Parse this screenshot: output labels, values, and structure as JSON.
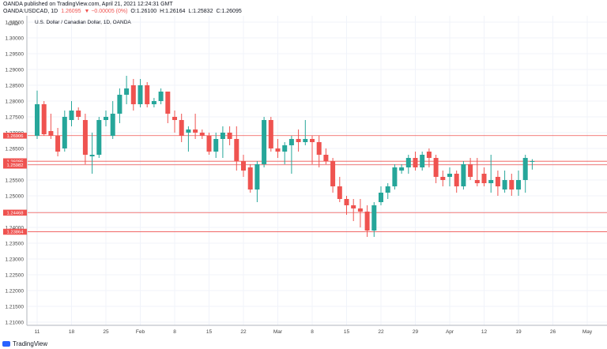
{
  "header": {
    "line1": "OANDA published on TradingView.com, April 21, 2021 12:24:31 GMT",
    "symbol": "OANDA:USDCAD, 1D",
    "last": "1.26095",
    "change": "▼ −0.00005 (0%)",
    "open": "O:1.26100",
    "high": "H:1.26164",
    "low": "L:1.25832",
    "close": "C:1.26095"
  },
  "footer": {
    "brand": "TradingView"
  },
  "colors": {
    "up": "#26a69a",
    "down": "#ef5350",
    "level_line": "#ef5350",
    "axis_text": "#444444",
    "grid": "#f0f3fa"
  },
  "chart_data": {
    "type": "candlestick",
    "title": "U.S. Dollar / Canadian Dollar, 1D, OANDA",
    "currency_label": "CAD",
    "ylim": [
      1.209,
      1.307
    ],
    "yticks": [
      "1.30500",
      "1.30000",
      "1.29500",
      "1.29000",
      "1.28500",
      "1.28000",
      "1.27500",
      "1.27000",
      "1.26500",
      "1.26000",
      "1.25500",
      "1.25000",
      "1.24500",
      "1.24000",
      "1.23500",
      "1.23000",
      "1.22500",
      "1.22000",
      "1.21500",
      "1.21000"
    ],
    "xticks": [
      {
        "label": "11",
        "index": 0
      },
      {
        "label": "18",
        "index": 5
      },
      {
        "label": "25",
        "index": 10
      },
      {
        "label": "Feb",
        "index": 15
      },
      {
        "label": "8",
        "index": 20
      },
      {
        "label": "15",
        "index": 25
      },
      {
        "label": "22",
        "index": 30
      },
      {
        "label": "Mar",
        "index": 35
      },
      {
        "label": "8",
        "index": 40
      },
      {
        "label": "15",
        "index": 45
      },
      {
        "label": "22",
        "index": 50
      },
      {
        "label": "29",
        "index": 55
      },
      {
        "label": "Apr",
        "index": 60
      },
      {
        "label": "12",
        "index": 65
      },
      {
        "label": "19",
        "index": 70
      },
      {
        "label": "26",
        "index": 75
      },
      {
        "label": "May",
        "index": 80
      }
    ],
    "ohlc": [
      [
        1.269,
        1.2833,
        1.268,
        1.279
      ],
      [
        1.279,
        1.28,
        1.269,
        1.2695
      ],
      [
        1.2705,
        1.276,
        1.268,
        1.269
      ],
      [
        1.269,
        1.2715,
        1.2625,
        1.264
      ],
      [
        1.265,
        1.277,
        1.264,
        1.275
      ],
      [
        1.274,
        1.28,
        1.272,
        1.277
      ],
      [
        1.277,
        1.278,
        1.274,
        1.275
      ],
      [
        1.274,
        1.276,
        1.26,
        1.263
      ],
      [
        1.2625,
        1.27,
        1.257,
        1.263
      ],
      [
        1.263,
        1.275,
        1.262,
        1.274
      ],
      [
        1.274,
        1.277,
        1.272,
        1.275
      ],
      [
        1.269,
        1.28,
        1.268,
        1.276
      ],
      [
        1.276,
        1.284,
        1.273,
        1.282
      ],
      [
        1.282,
        1.288,
        1.279,
        1.284
      ],
      [
        1.285,
        1.287,
        1.277,
        1.279
      ],
      [
        1.279,
        1.287,
        1.278,
        1.285
      ],
      [
        1.285,
        1.286,
        1.278,
        1.279
      ],
      [
        1.279,
        1.281,
        1.278,
        1.28
      ],
      [
        1.28,
        1.284,
        1.279,
        1.283
      ],
      [
        1.283,
        1.283,
        1.273,
        1.276
      ],
      [
        1.275,
        1.277,
        1.27,
        1.274
      ],
      [
        1.274,
        1.276,
        1.267,
        1.269
      ],
      [
        1.27,
        1.272,
        1.264,
        1.271
      ],
      [
        1.271,
        1.276,
        1.268,
        1.27
      ],
      [
        1.27,
        1.271,
        1.268,
        1.269
      ],
      [
        1.269,
        1.27,
        1.263,
        1.264
      ],
      [
        1.264,
        1.27,
        1.262,
        1.268
      ],
      [
        1.268,
        1.272,
        1.262,
        1.27
      ],
      [
        1.27,
        1.272,
        1.266,
        1.268
      ],
      [
        1.268,
        1.272,
        1.258,
        1.261
      ],
      [
        1.261,
        1.263,
        1.256,
        1.258
      ],
      [
        1.259,
        1.26,
        1.251,
        1.252
      ],
      [
        1.252,
        1.261,
        1.248,
        1.26
      ],
      [
        1.26,
        1.275,
        1.259,
        1.274
      ],
      [
        1.274,
        1.275,
        1.264,
        1.265
      ],
      [
        1.265,
        1.268,
        1.262,
        1.264
      ],
      [
        1.264,
        1.267,
        1.26,
        1.266
      ],
      [
        1.266,
        1.269,
        1.257,
        1.268
      ],
      [
        1.268,
        1.271,
        1.264,
        1.267
      ],
      [
        1.267,
        1.274,
        1.266,
        1.268
      ],
      [
        1.268,
        1.269,
        1.26,
        1.267
      ],
      [
        1.267,
        1.269,
        1.259,
        1.263
      ],
      [
        1.263,
        1.265,
        1.26,
        1.261
      ],
      [
        1.261,
        1.262,
        1.251,
        1.253
      ],
      [
        1.253,
        1.256,
        1.248,
        1.249
      ],
      [
        1.249,
        1.25,
        1.244,
        1.247
      ],
      [
        1.247,
        1.249,
        1.242,
        1.246
      ],
      [
        1.246,
        1.249,
        1.24,
        1.245
      ],
      [
        1.245,
        1.247,
        1.237,
        1.239
      ],
      [
        1.239,
        1.248,
        1.237,
        1.247
      ],
      [
        1.248,
        1.253,
        1.247,
        1.251
      ],
      [
        1.251,
        1.254,
        1.249,
        1.253
      ],
      [
        1.253,
        1.26,
        1.252,
        1.259
      ],
      [
        1.258,
        1.26,
        1.257,
        1.259
      ],
      [
        1.259,
        1.263,
        1.257,
        1.262
      ],
      [
        1.262,
        1.264,
        1.258,
        1.259
      ],
      [
        1.259,
        1.264,
        1.258,
        1.263
      ],
      [
        1.264,
        1.265,
        1.259,
        1.262
      ],
      [
        1.262,
        1.263,
        1.254,
        1.256
      ],
      [
        1.256,
        1.258,
        1.253,
        1.255
      ],
      [
        1.256,
        1.259,
        1.253,
        1.257
      ],
      [
        1.257,
        1.258,
        1.251,
        1.253
      ],
      [
        1.253,
        1.261,
        1.252,
        1.26
      ],
      [
        1.26,
        1.262,
        1.255,
        1.256
      ],
      [
        1.255,
        1.262,
        1.253,
        1.254
      ],
      [
        1.257,
        1.259,
        1.253,
        1.254
      ],
      [
        1.254,
        1.263,
        1.251,
        1.255
      ],
      [
        1.256,
        1.258,
        1.25,
        1.253
      ],
      [
        1.252,
        1.258,
        1.251,
        1.255
      ],
      [
        1.255,
        1.257,
        1.25,
        1.252
      ],
      [
        1.252,
        1.258,
        1.25,
        1.255
      ],
      [
        1.255,
        1.263,
        1.251,
        1.262
      ],
      [
        1.261,
        1.2616,
        1.2583,
        1.261
      ]
    ],
    "horizontal_levels": [
      {
        "price": 1.26906,
        "label": "1.26906"
      },
      {
        "price": 1.26095,
        "label": "1.26095",
        "sublabel": "08:35:29",
        "current": true
      },
      {
        "price": 1.25982,
        "label": "1.25982"
      },
      {
        "price": 1.24468,
        "label": "1.24468"
      },
      {
        "price": 1.23864,
        "label": "1.23864"
      }
    ]
  }
}
